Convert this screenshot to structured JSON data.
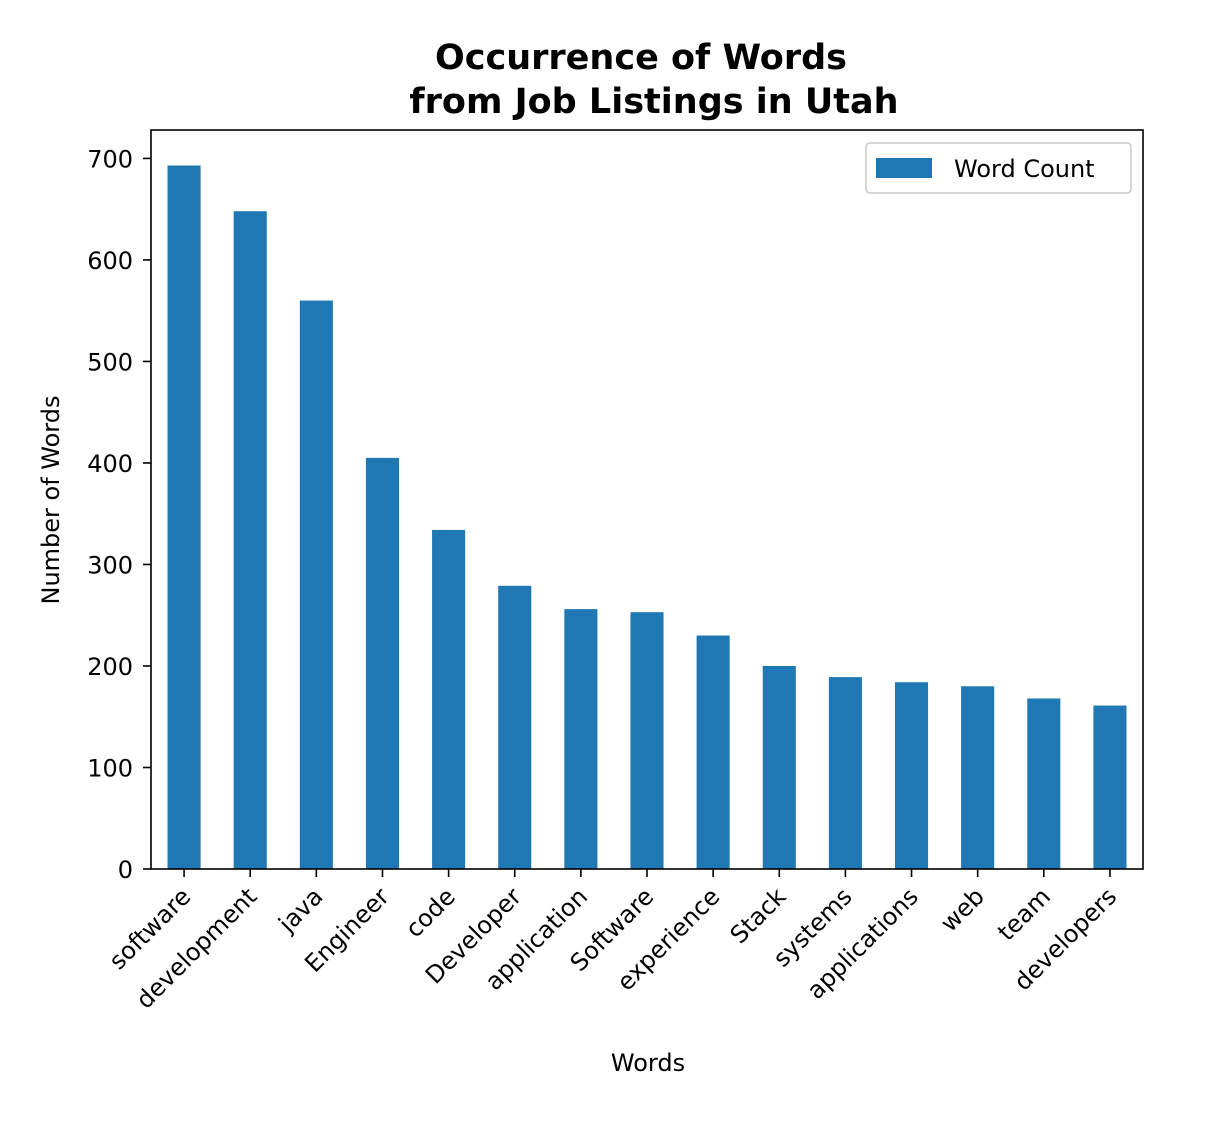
{
  "chart_data": {
    "type": "bar",
    "title_lines": [
      "Occurrence of Words",
      "from Job Listings in Utah"
    ],
    "xlabel": "Words",
    "ylabel": "Number of Words",
    "categories": [
      "software",
      "development",
      "java",
      "Engineer",
      "code",
      "Developer",
      "application",
      "Software",
      "experience",
      "Stack",
      "systems",
      "applications",
      "web",
      "team",
      "developers"
    ],
    "series": [
      {
        "name": "Word Count",
        "color": "#1f77b4",
        "values": [
          693,
          648,
          560,
          405,
          334,
          279,
          256,
          253,
          230,
          200,
          189,
          184,
          180,
          168,
          161
        ]
      }
    ],
    "ylim": [
      0,
      728
    ],
    "yticks": [
      0,
      100,
      200,
      300,
      400,
      500,
      600,
      700
    ],
    "xtick_rotation": 45,
    "grid": false,
    "legend": {
      "position": "top-right",
      "entries": [
        "Word Count"
      ]
    }
  }
}
